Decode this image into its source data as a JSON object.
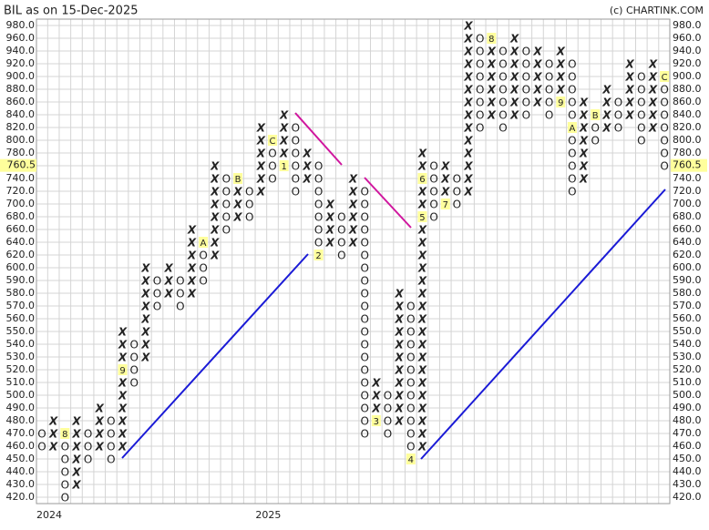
{
  "chart_data": {
    "type": "point-and-figure",
    "title": "BIL as on 15-Dec-2025",
    "source": "(c) CHARTINK.COM",
    "x_color": "#2a8a2a",
    "o_color": "#e02424",
    "last_price": {
      "value": 760.5,
      "label": "760.5"
    },
    "yticks": [
      {
        "value": 420,
        "label": "420.0"
      },
      {
        "value": 430,
        "label": "430.0"
      },
      {
        "value": 440,
        "label": "440.0"
      },
      {
        "value": 450,
        "label": "450.0"
      },
      {
        "value": 460,
        "label": "460.0"
      },
      {
        "value": 470,
        "label": "470.0"
      },
      {
        "value": 480,
        "label": "480.0"
      },
      {
        "value": 490,
        "label": "490.0"
      },
      {
        "value": 500,
        "label": "500.0"
      },
      {
        "value": 510,
        "label": "510.0"
      },
      {
        "value": 520,
        "label": "520.0"
      },
      {
        "value": 530,
        "label": "530.0"
      },
      {
        "value": 540,
        "label": "540.0"
      },
      {
        "value": 550,
        "label": "550.0"
      },
      {
        "value": 560,
        "label": "560.0"
      },
      {
        "value": 570,
        "label": "570.0"
      },
      {
        "value": 580,
        "label": "580.0"
      },
      {
        "value": 590,
        "label": "590.0"
      },
      {
        "value": 600,
        "label": "600.0"
      },
      {
        "value": 620,
        "label": "620.0"
      },
      {
        "value": 640,
        "label": "640.0"
      },
      {
        "value": 660,
        "label": "660.0"
      },
      {
        "value": 680,
        "label": "680.0"
      },
      {
        "value": 700,
        "label": "700.0"
      },
      {
        "value": 720,
        "label": "720.0"
      },
      {
        "value": 740,
        "label": "740.0"
      },
      {
        "value": 760,
        "label": "760.0"
      },
      {
        "value": 780,
        "label": "780.0"
      },
      {
        "value": 800,
        "label": "800.0"
      },
      {
        "value": 820,
        "label": "820.0"
      },
      {
        "value": 840,
        "label": "840.0"
      },
      {
        "value": 860,
        "label": "860.0"
      },
      {
        "value": 880,
        "label": "880.0"
      },
      {
        "value": 900,
        "label": "900.0"
      },
      {
        "value": 920,
        "label": "920.0"
      },
      {
        "value": 940,
        "label": "940.0"
      },
      {
        "value": 960,
        "label": "960.0"
      },
      {
        "value": 980,
        "label": "980.0"
      }
    ],
    "columns": [
      {
        "box": "O",
        "from": 460,
        "to": 470,
        "year": "2024"
      },
      {
        "box": "X",
        "from": 460,
        "to": 480
      },
      {
        "box": "O",
        "from": 420,
        "to": 470,
        "markers": [
          {
            "value": 470,
            "label": "8"
          }
        ]
      },
      {
        "box": "X",
        "from": 430,
        "to": 480
      },
      {
        "box": "O",
        "from": 450,
        "to": 470
      },
      {
        "box": "X",
        "from": 460,
        "to": 490
      },
      {
        "box": "O",
        "from": 450,
        "to": 480
      },
      {
        "box": "X",
        "from": 460,
        "to": 550,
        "markers": [
          {
            "value": 520,
            "label": "9"
          }
        ]
      },
      {
        "box": "O",
        "from": 510,
        "to": 540
      },
      {
        "box": "X",
        "from": 530,
        "to": 600
      },
      {
        "box": "O",
        "from": 570,
        "to": 590
      },
      {
        "box": "X",
        "from": 580,
        "to": 600
      },
      {
        "box": "O",
        "from": 570,
        "to": 590
      },
      {
        "box": "X",
        "from": 580,
        "to": 660
      },
      {
        "box": "O",
        "from": 590,
        "to": 640,
        "markers": [
          {
            "value": 640,
            "label": "A"
          }
        ]
      },
      {
        "box": "X",
        "from": 620,
        "to": 760
      },
      {
        "box": "O",
        "from": 660,
        "to": 740
      },
      {
        "box": "X",
        "from": 680,
        "to": 740,
        "markers": [
          {
            "value": 740,
            "label": "B"
          }
        ]
      },
      {
        "box": "O",
        "from": 680,
        "to": 720
      },
      {
        "box": "X",
        "from": 720,
        "to": 820,
        "year": "2025"
      },
      {
        "box": "O",
        "from": 740,
        "to": 800,
        "markers": [
          {
            "value": 800,
            "label": "C"
          }
        ]
      },
      {
        "box": "X",
        "from": 760,
        "to": 840,
        "markers": [
          {
            "value": 760,
            "label": "1"
          }
        ]
      },
      {
        "box": "O",
        "from": 720,
        "to": 820
      },
      {
        "box": "X",
        "from": 740,
        "to": 780
      },
      {
        "box": "O",
        "from": 620,
        "to": 760,
        "markers": [
          {
            "value": 620,
            "label": "2"
          }
        ]
      },
      {
        "box": "X",
        "from": 640,
        "to": 700
      },
      {
        "box": "O",
        "from": 620,
        "to": 680
      },
      {
        "box": "X",
        "from": 640,
        "to": 740
      },
      {
        "box": "O",
        "from": 470,
        "to": 720
      },
      {
        "box": "X",
        "from": 480,
        "to": 510,
        "markers": [
          {
            "value": 480,
            "label": "3"
          }
        ]
      },
      {
        "box": "O",
        "from": 470,
        "to": 500
      },
      {
        "box": "X",
        "from": 480,
        "to": 580
      },
      {
        "box": "O",
        "from": 450,
        "to": 570,
        "markers": [
          {
            "value": 450,
            "label": "4"
          }
        ]
      },
      {
        "box": "X",
        "from": 460,
        "to": 780,
        "markers": [
          {
            "value": 680,
            "label": "5"
          },
          {
            "value": 740,
            "label": "6"
          }
        ]
      },
      {
        "box": "O",
        "from": 680,
        "to": 760
      },
      {
        "box": "X",
        "from": 700,
        "to": 760,
        "markers": [
          {
            "value": 700,
            "label": "7"
          }
        ]
      },
      {
        "box": "O",
        "from": 700,
        "to": 740
      },
      {
        "box": "X",
        "from": 720,
        "to": 980
      },
      {
        "box": "O",
        "from": 820,
        "to": 960
      },
      {
        "box": "X",
        "from": 840,
        "to": 960,
        "markers": [
          {
            "value": 960,
            "label": "8"
          }
        ]
      },
      {
        "box": "O",
        "from": 820,
        "to": 940
      },
      {
        "box": "X",
        "from": 840,
        "to": 960
      },
      {
        "box": "O",
        "from": 840,
        "to": 940
      },
      {
        "box": "X",
        "from": 860,
        "to": 940
      },
      {
        "box": "O",
        "from": 840,
        "to": 920
      },
      {
        "box": "X",
        "from": 860,
        "to": 940,
        "markers": [
          {
            "value": 860,
            "label": "9"
          }
        ]
      },
      {
        "box": "O",
        "from": 720,
        "to": 920,
        "markers": [
          {
            "value": 820,
            "label": "A"
          }
        ]
      },
      {
        "box": "X",
        "from": 740,
        "to": 860
      },
      {
        "box": "O",
        "from": 800,
        "to": 840,
        "markers": [
          {
            "value": 840,
            "label": "B"
          }
        ]
      },
      {
        "box": "X",
        "from": 820,
        "to": 880
      },
      {
        "box": "O",
        "from": 820,
        "to": 860
      },
      {
        "box": "X",
        "from": 840,
        "to": 920
      },
      {
        "box": "O",
        "from": 800,
        "to": 900
      },
      {
        "box": "X",
        "from": 820,
        "to": 920
      },
      {
        "box": "O",
        "from": 760,
        "to": 900,
        "markers": [
          {
            "value": 900,
            "label": "C"
          }
        ]
      }
    ]
  }
}
